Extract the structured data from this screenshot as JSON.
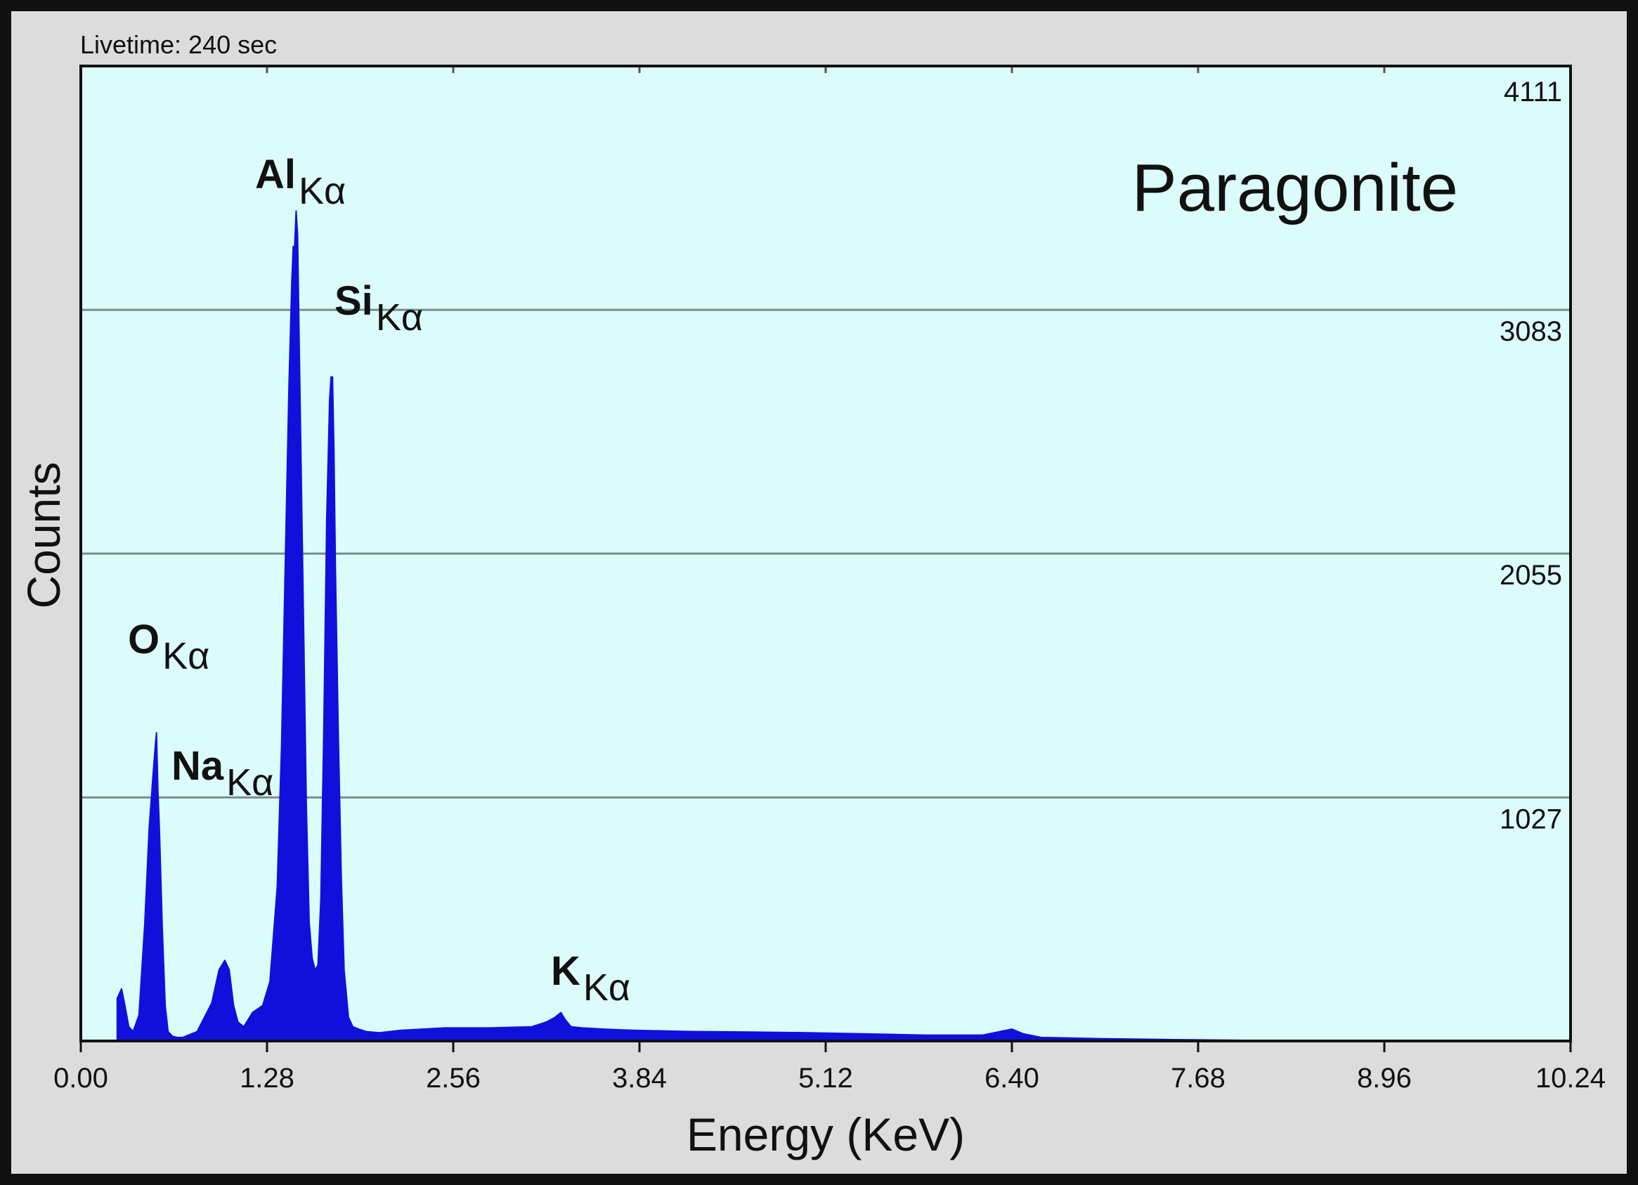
{
  "chart_data": {
    "type": "area",
    "title": "Paragonite",
    "header_text": "Livetime: 240 sec",
    "xlabel": "Energy (KeV)",
    "ylabel": "Counts",
    "xlim": [
      0,
      10.24
    ],
    "ylim": [
      0,
      4111
    ],
    "x_ticks": [
      "0.00",
      "1.28",
      "2.56",
      "3.84",
      "5.12",
      "6.40",
      "7.68",
      "8.96",
      "10.24"
    ],
    "y_gridlines": [
      "4111",
      "3083",
      "2055",
      "1027"
    ],
    "grid": true,
    "colors": {
      "spectrum": "#1010dd",
      "plot_background": "#dcfcfc",
      "frame_background": "#dcdcdc",
      "gridline": "#7a8a8a"
    },
    "peak_labels": [
      {
        "element": "Al",
        "line": "Kα",
        "energy": 1.49
      },
      {
        "element": "Si",
        "line": "Kα",
        "energy": 1.74
      },
      {
        "element": "O",
        "line": "Kα",
        "energy": 0.52
      },
      {
        "element": "Na",
        "line": "Kα",
        "energy": 1.04
      },
      {
        "element": "K",
        "line": "Kα",
        "energy": 3.31
      }
    ],
    "series": [
      {
        "x": [
          0.25,
          0.28,
          0.3,
          0.33,
          0.36,
          0.4,
          0.44,
          0.47,
          0.5,
          0.51,
          0.52,
          0.53,
          0.54,
          0.56,
          0.58,
          0.6,
          0.63,
          0.66,
          0.7,
          0.8,
          0.9,
          0.95,
          0.99,
          1.02,
          1.05,
          1.08,
          1.12,
          1.18,
          1.25,
          1.3,
          1.35,
          1.38,
          1.41,
          1.43,
          1.45,
          1.46,
          1.47,
          1.48,
          1.49,
          1.5,
          1.51,
          1.52,
          1.53,
          1.55,
          1.57,
          1.59,
          1.61,
          1.63,
          1.65,
          1.67,
          1.69,
          1.71,
          1.72,
          1.73,
          1.74,
          1.75,
          1.77,
          1.79,
          1.81,
          1.84,
          1.87,
          1.91,
          1.96,
          2.05,
          2.2,
          2.5,
          2.8,
          3.1,
          3.2,
          3.26,
          3.3,
          3.33,
          3.37,
          3.45,
          3.6,
          3.8,
          4.2,
          4.6,
          5.0,
          5.4,
          5.8,
          6.2,
          6.32,
          6.4,
          6.48,
          6.6,
          7.0,
          7.5,
          8.0,
          8.5,
          9.0
        ],
        "y": [
          180,
          220,
          160,
          60,
          40,
          110,
          500,
          900,
          1150,
          1230,
          1300,
          1060,
          900,
          480,
          150,
          40,
          20,
          15,
          15,
          40,
          160,
          300,
          340,
          300,
          150,
          80,
          60,
          120,
          150,
          250,
          650,
          1250,
          2150,
          2750,
          3200,
          3350,
          3350,
          3500,
          3400,
          3000,
          2600,
          2200,
          1800,
          1000,
          500,
          350,
          300,
          320,
          600,
          1300,
          2200,
          2700,
          2800,
          2800,
          2500,
          2000,
          1300,
          700,
          300,
          100,
          60,
          50,
          40,
          35,
          45,
          55,
          55,
          60,
          80,
          100,
          120,
          90,
          60,
          55,
          50,
          45,
          40,
          38,
          35,
          30,
          25,
          25,
          40,
          50,
          30,
          15,
          10,
          6,
          3,
          2,
          0
        ]
      }
    ]
  }
}
